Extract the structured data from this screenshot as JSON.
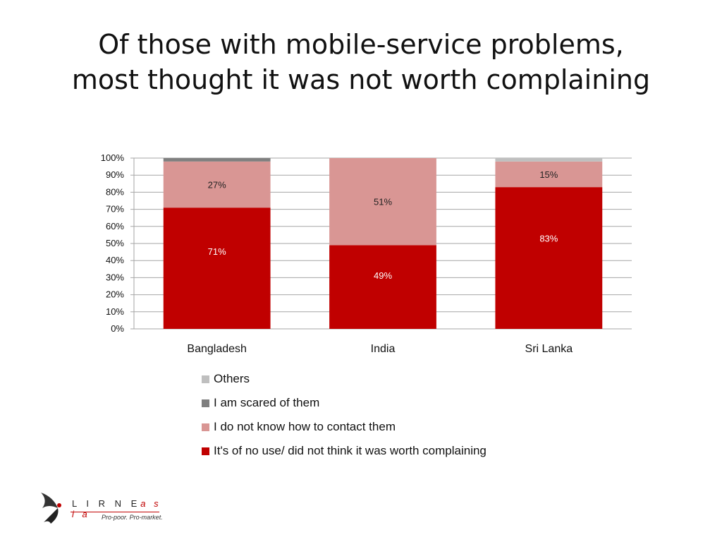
{
  "title": {
    "line1": "Of those with mobile-service problems,",
    "line2": "most thought it was not worth complaining"
  },
  "chart_data": {
    "type": "bar",
    "stacked": true,
    "categories": [
      "Bangladesh",
      "India",
      "Sri Lanka"
    ],
    "series": [
      {
        "name": "It's of no use/ did not think it was worth complaining",
        "values": [
          71,
          49,
          83
        ],
        "color": "#c00000",
        "labels": [
          "71%",
          "49%",
          "83%"
        ]
      },
      {
        "name": "I do not know how to contact them",
        "values": [
          27,
          51,
          15
        ],
        "color": "#d99694",
        "labels": [
          "27%",
          "51%",
          "15%"
        ]
      },
      {
        "name": "I am scared of them",
        "values": [
          2,
          0,
          0
        ],
        "color": "#7f7f7f",
        "labels": [
          "",
          "",
          ""
        ]
      },
      {
        "name": "Others",
        "values": [
          0,
          0,
          2
        ],
        "color": "#bfbfbf",
        "labels": [
          "",
          "",
          ""
        ]
      }
    ],
    "ylim": [
      0,
      100
    ],
    "yticks": [
      "0%",
      "10%",
      "20%",
      "30%",
      "40%",
      "50%",
      "60%",
      "70%",
      "80%",
      "90%",
      "100%"
    ],
    "grid": true,
    "legend_position": "bottom",
    "legend_order": [
      "Others",
      "I am scared of them",
      "I do not know how to contact them",
      "It's of no use/ did not think it was worth complaining"
    ]
  },
  "logo": {
    "name": "L I R N E",
    "suffix": "a s i a",
    "tagline": "Pro-poor. Pro-market."
  }
}
